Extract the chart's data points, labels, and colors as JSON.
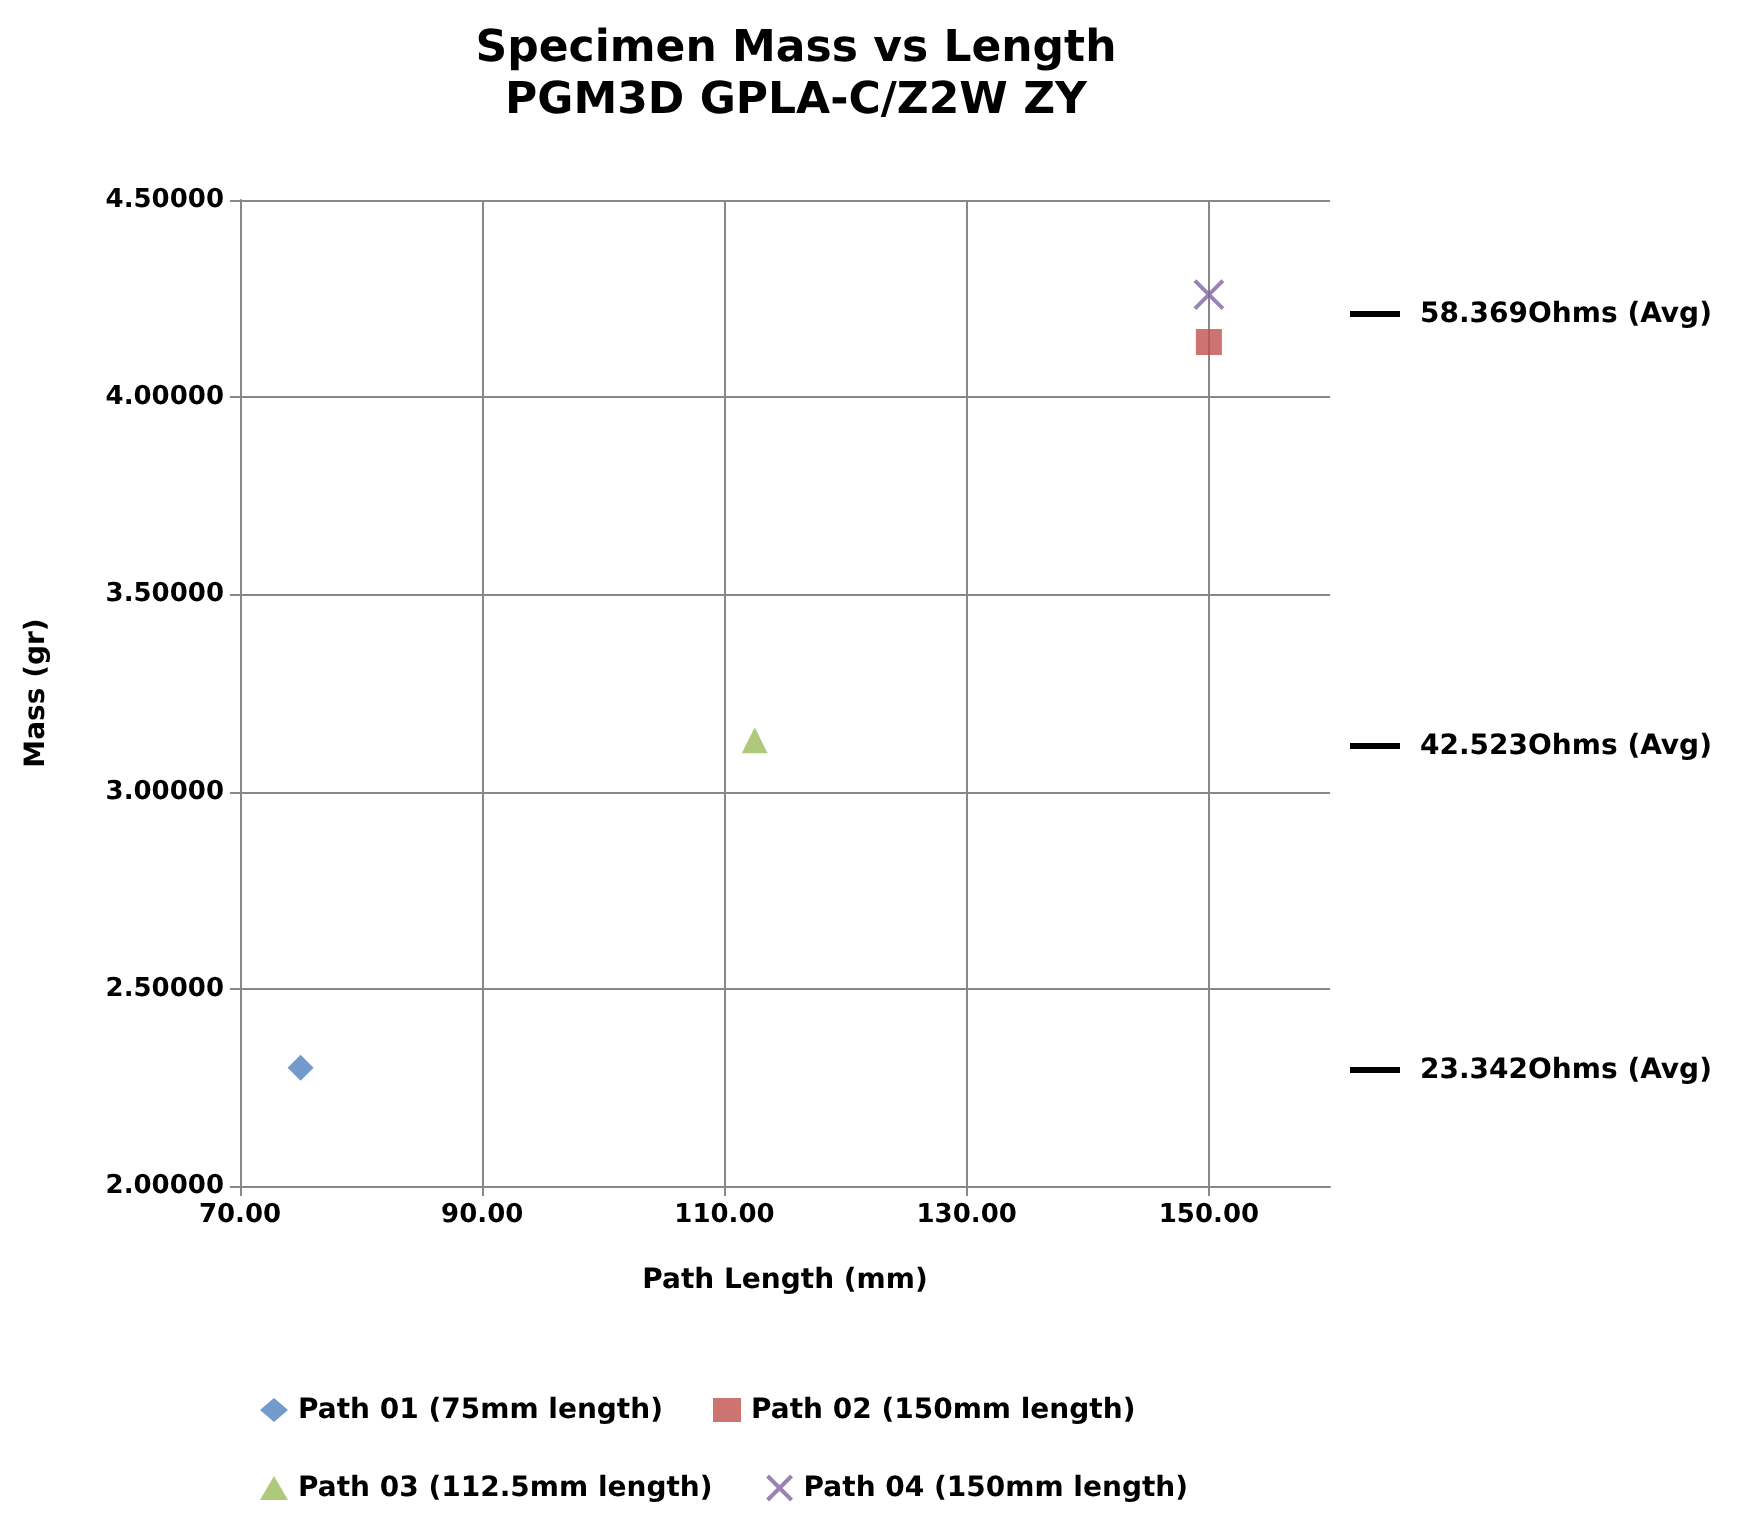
{
  "chart_data": {
    "type": "scatter",
    "title": "Specimen Mass vs Length",
    "subtitle": "PGM3D GPLA-C/Z2W ZY",
    "xlabel": "Path Length (mm)",
    "ylabel": "Mass (gr)",
    "xlim": [
      70,
      160
    ],
    "xticks": [
      {
        "value": 70,
        "label": "70.00"
      },
      {
        "value": 90,
        "label": "90.00"
      },
      {
        "value": 110,
        "label": "110.00"
      },
      {
        "value": 130,
        "label": "130.00"
      },
      {
        "value": 150,
        "label": "150.00"
      }
    ],
    "ylim": [
      2,
      4.5
    ],
    "yticks": [
      {
        "value": 2,
        "label": "2.00000"
      },
      {
        "value": 2.5,
        "label": "2.50000"
      },
      {
        "value": 3,
        "label": "3.00000"
      },
      {
        "value": 3.5,
        "label": "3.50000"
      },
      {
        "value": 4,
        "label": "4.00000"
      },
      {
        "value": 4.5,
        "label": "4.50000"
      }
    ],
    "grid": true,
    "legend": "bottom",
    "series": [
      {
        "name": "Path 01 (75mm length)",
        "color": "#4f81bd",
        "marker": "diamond",
        "x": [
          75
        ],
        "values": [
          2.3
        ]
      },
      {
        "name": "Path 02 (150mm length)",
        "color": "#c0504d",
        "marker": "square",
        "x": [
          150
        ],
        "values": [
          4.14
        ]
      },
      {
        "name": "Path 03 (112.5mm length)",
        "color": "#9bbb59",
        "marker": "triangle",
        "x": [
          112.5
        ],
        "values": [
          3.13
        ]
      },
      {
        "name": "Path 04 (150mm length)",
        "color": "#8064a2",
        "marker": "cross",
        "x": [
          150
        ],
        "values": [
          4.26
        ]
      }
    ],
    "annotations": [
      "58.369Ohms (Avg)",
      "42.523Ohms (Avg)",
      "23.342Ohms (Avg)"
    ]
  }
}
